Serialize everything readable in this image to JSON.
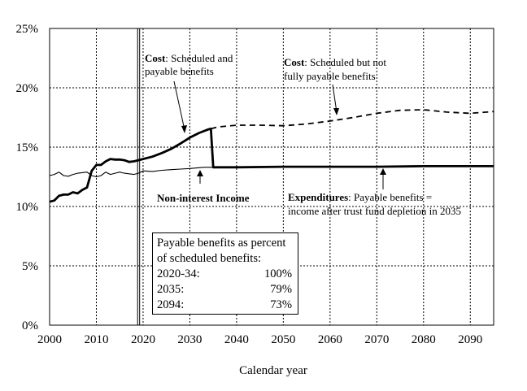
{
  "chart_data": {
    "type": "line",
    "xlabel": "Calendar year",
    "ylabel": "",
    "xlim": [
      2000,
      2095
    ],
    "ylim": [
      0,
      25
    ],
    "x_ticks": [
      "2000",
      "2010",
      "2020",
      "2030",
      "2040",
      "2050",
      "2060",
      "2070",
      "2080",
      "2090"
    ],
    "y_ticks": [
      "0%",
      "5%",
      "10%",
      "15%",
      "20%",
      "25%"
    ],
    "grid": "dotted",
    "vertical_marker_year": 2019,
    "series": [
      {
        "label": "Cost: Scheduled and payable benefits",
        "style": "solid-thick",
        "points": [
          [
            2000,
            10.4
          ],
          [
            2001,
            10.5
          ],
          [
            2002,
            10.9
          ],
          [
            2003,
            11.0
          ],
          [
            2004,
            11.0
          ],
          [
            2005,
            11.2
          ],
          [
            2006,
            11.1
          ],
          [
            2007,
            11.4
          ],
          [
            2008,
            11.6
          ],
          [
            2009,
            13.0
          ],
          [
            2010,
            13.5
          ],
          [
            2011,
            13.5
          ],
          [
            2012,
            13.8
          ],
          [
            2013,
            14.0
          ],
          [
            2014,
            13.95
          ],
          [
            2015,
            13.95
          ],
          [
            2016,
            13.9
          ],
          [
            2017,
            13.75
          ],
          [
            2018,
            13.8
          ],
          [
            2019,
            13.9
          ],
          [
            2020,
            14.0
          ],
          [
            2022,
            14.2
          ],
          [
            2024,
            14.5
          ],
          [
            2026,
            14.85
          ],
          [
            2028,
            15.3
          ],
          [
            2030,
            15.8
          ],
          [
            2032,
            16.2
          ],
          [
            2034,
            16.5
          ],
          [
            2034.5,
            16.55
          ],
          [
            2035,
            13.3
          ],
          [
            2040,
            13.3
          ],
          [
            2050,
            13.35
          ],
          [
            2060,
            13.35
          ],
          [
            2070,
            13.35
          ],
          [
            2080,
            13.4
          ],
          [
            2095,
            13.4
          ]
        ]
      },
      {
        "label": "Cost: Scheduled but not fully payable benefits",
        "style": "dashed",
        "points": [
          [
            2034.5,
            16.55
          ],
          [
            2036,
            16.7
          ],
          [
            2040,
            16.85
          ],
          [
            2045,
            16.85
          ],
          [
            2050,
            16.8
          ],
          [
            2055,
            16.95
          ],
          [
            2060,
            17.2
          ],
          [
            2065,
            17.5
          ],
          [
            2070,
            17.85
          ],
          [
            2075,
            18.1
          ],
          [
            2080,
            18.15
          ],
          [
            2085,
            17.95
          ],
          [
            2090,
            17.85
          ],
          [
            2095,
            18.0
          ]
        ]
      },
      {
        "label": "Non-interest Income",
        "style": "solid-thin",
        "points": [
          [
            2000,
            12.6
          ],
          [
            2001,
            12.7
          ],
          [
            2002,
            12.9
          ],
          [
            2003,
            12.6
          ],
          [
            2004,
            12.55
          ],
          [
            2005,
            12.7
          ],
          [
            2006,
            12.8
          ],
          [
            2007,
            12.85
          ],
          [
            2008,
            12.9
          ],
          [
            2009,
            12.6
          ],
          [
            2010,
            12.5
          ],
          [
            2011,
            12.6
          ],
          [
            2012,
            12.9
          ],
          [
            2013,
            12.7
          ],
          [
            2014,
            12.8
          ],
          [
            2015,
            12.9
          ],
          [
            2016,
            12.8
          ],
          [
            2017,
            12.75
          ],
          [
            2018,
            12.7
          ],
          [
            2019,
            12.8
          ],
          [
            2020,
            13.0
          ],
          [
            2022,
            12.95
          ],
          [
            2024,
            13.05
          ],
          [
            2026,
            13.1
          ],
          [
            2028,
            13.15
          ],
          [
            2030,
            13.2
          ],
          [
            2033,
            13.3
          ],
          [
            2035,
            13.3
          ],
          [
            2040,
            13.3
          ],
          [
            2095,
            13.4
          ]
        ]
      }
    ],
    "annotations": [
      {
        "bold": "Cost",
        "text": ": Scheduled and",
        "line2": "payable benefits"
      },
      {
        "bold": "Cost",
        "text": ": Scheduled but not",
        "line2": "fully payable benefits"
      },
      {
        "bold": "Non-interest Income",
        "text": "",
        "line2": ""
      },
      {
        "bold": "Expenditures",
        "text": ": Payable benefits =",
        "line2": "income after trust fund depletion in 2035"
      }
    ]
  },
  "inset_box": {
    "title_line1": "Payable benefits as percent",
    "title_line2": "of scheduled benefits:",
    "rows": [
      {
        "period": "2020-34:",
        "value": "100%"
      },
      {
        "period": "2035:",
        "value": "79%"
      },
      {
        "period": "2094:",
        "value": "73%"
      }
    ]
  }
}
